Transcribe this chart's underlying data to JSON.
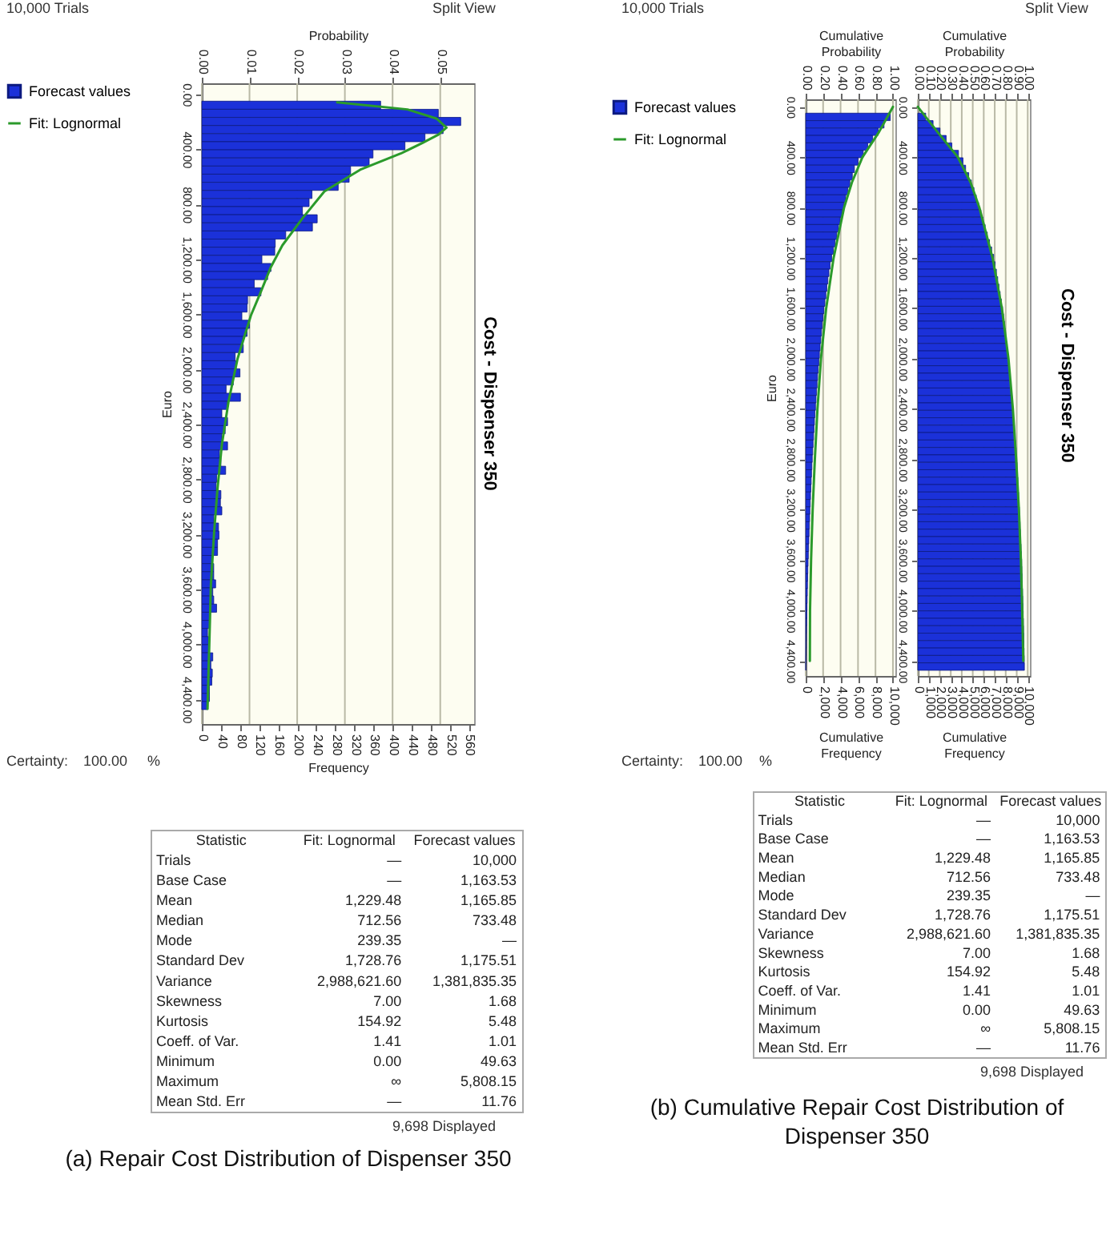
{
  "chart_data": [
    {
      "type": "histogram",
      "orientation": "horizontal",
      "title": "Cost - Dispenser 350",
      "xlabel": "Frequency",
      "ylabel": "Euro",
      "x2label": "Probability",
      "bins": [
        50,
        109,
        168,
        227,
        286,
        345,
        404,
        463,
        522,
        581,
        640,
        699,
        758,
        817,
        876,
        935,
        994,
        1053,
        1112,
        1171,
        1230,
        1289,
        1348,
        1407,
        1466,
        1525,
        1584,
        1643,
        1702,
        1761,
        1820,
        1879,
        1938,
        1997,
        2056,
        2115,
        2174,
        2233,
        2292,
        2351,
        2410,
        2469,
        2528,
        2587,
        2646,
        2705,
        2764,
        2823,
        2882,
        2941,
        3000,
        3059,
        3118,
        3177,
        3236,
        3295,
        3354,
        3413,
        3472,
        3531,
        3590,
        3649,
        3708,
        3767,
        3826,
        3885,
        3944,
        4003,
        4062,
        4121,
        4180,
        4239,
        4298,
        4357,
        4416,
        4475
      ],
      "series": [
        {
          "name": "Fit: Lognormal",
          "type": "line",
          "color": "#2b9a2b",
          "x": [
            59,
            110,
            176,
            243,
            294,
            353,
            431,
            549,
            706,
            902,
            1098,
            1255,
            1451,
            1608,
            1922,
            2235,
            2549,
            2863,
            3176,
            3569,
            3961,
            4470
          ],
          "values": [
            284,
            431,
            492,
            513,
            496,
            463,
            417,
            332,
            257,
            211,
            169,
            145,
            122,
            103,
            75,
            56,
            42,
            33,
            26,
            19,
            16,
            12
          ]
        },
        {
          "name": "Forecast values",
          "type": "histogram",
          "color": "#1b31d9",
          "values": [
            375,
            496,
            543,
            506,
            468,
            426,
            359,
            351,
            312,
            309,
            286,
            231,
            225,
            211,
            242,
            232,
            176,
            154,
            153,
            126,
            145,
            138,
            110,
            124,
            96,
            95,
            84,
            100,
            95,
            86,
            87,
            70,
            72,
            80,
            66,
            51,
            81,
            53,
            42,
            54,
            49,
            42,
            54,
            37,
            40,
            50,
            31,
            30,
            40,
            39,
            42,
            25,
            35,
            36,
            33,
            33,
            22,
            25,
            25,
            29,
            23,
            25,
            31,
            16,
            16,
            12,
            14,
            16,
            23,
            19,
            22,
            21,
            16,
            16,
            12
          ]
        }
      ],
      "xlim": [
        0,
        571
      ],
      "xticks": [
        0,
        40,
        80,
        120,
        160,
        200,
        240,
        280,
        320,
        360,
        400,
        440,
        480,
        520,
        560
      ],
      "x2lim": [
        0,
        0.0571
      ],
      "x2ticks": [
        {
          "value": 0,
          "label": "0.00"
        },
        0.01,
        0.02,
        0.03,
        0.04,
        0.05
      ],
      "ylim": [
        4580,
        -80
      ],
      "yticks": [
        {
          "value": 0,
          "label": "0.00"
        },
        {
          "value": 400,
          "label": "400.00"
        },
        {
          "value": 800,
          "label": "800.00"
        },
        {
          "value": 1200,
          "label": "1,200.00"
        },
        {
          "value": 1600,
          "label": "1,600.00"
        },
        {
          "value": 2000,
          "label": "2,000.00"
        },
        {
          "value": 2400,
          "label": "2,400.00"
        },
        {
          "value": 2800,
          "label": "2,800.00"
        },
        {
          "value": 3200,
          "label": "3,200.00"
        },
        {
          "value": 3600,
          "label": "3,600.00"
        },
        {
          "value": 4000,
          "label": "4,000.00"
        },
        {
          "value": 4400,
          "label": "4,400.00"
        }
      ],
      "grid": "x",
      "legend": "left",
      "marker": "none",
      "line_style": "solid",
      "annotations": [
        "10,000 Trials",
        "Split View",
        "9,698 Displayed",
        "Certainty:",
        "100.00",
        "%",
        "(a) Repair Cost Distribution of Dispenser 350"
      ]
    },
    {
      "type": "other",
      "xlabel": "Statistic",
      "categories": [
        "Trials",
        "Base Case",
        "Mean",
        "Median",
        "Mode",
        "Standard Dev",
        "Variance",
        "Skewness",
        "Kurtosis",
        "Coeff. of Var.",
        "Minimum",
        "Maximum",
        "Mean Std. Err"
      ],
      "series": [
        {
          "name": "Fit: Lognormal",
          "values": [
            null,
            null,
            1229.48,
            712.56,
            239.35,
            1728.76,
            2988621.6,
            7.0,
            154.92,
            1.41,
            0.0,
            null,
            null
          ],
          "value_labels": [
            "—",
            "—",
            "1,229.48",
            "712.56",
            "239.35",
            "1,728.76",
            "2,988,621.60",
            "7.00",
            "154.92",
            "1.41",
            "0.00",
            "∞",
            "—"
          ]
        },
        {
          "name": "Forecast values",
          "values": [
            10000,
            1163.53,
            1165.85,
            733.48,
            null,
            1175.51,
            1381835.35,
            1.68,
            5.48,
            1.01,
            49.63,
            5808.15,
            11.76
          ],
          "value_labels": [
            "10,000",
            "1,163.53",
            "1,165.85",
            "733.48",
            "—",
            "1,175.51",
            "1,381,835.35",
            "1.68",
            "5.48",
            "1.01",
            "49.63",
            "5,808.15",
            "11.76"
          ]
        }
      ]
    },
    {
      "type": "histogram",
      "orientation": "horizontal",
      "xlabel": "Cumulative Frequency",
      "ylabel": "Euro",
      "x2label": "Cumulative Probability",
      "bins": [
        50,
        109,
        168,
        227,
        286,
        345,
        404,
        463,
        522,
        581,
        640,
        699,
        758,
        817,
        876,
        935,
        994,
        1053,
        1112,
        1171,
        1230,
        1289,
        1348,
        1407,
        1466,
        1525,
        1584,
        1643,
        1702,
        1761,
        1820,
        1879,
        1938,
        1997,
        2056,
        2115,
        2174,
        2233,
        2292,
        2351,
        2410,
        2469,
        2528,
        2587,
        2646,
        2705,
        2764,
        2823,
        2882,
        2941,
        3000,
        3059,
        3118,
        3177,
        3236,
        3295,
        3354,
        3413,
        3472,
        3531,
        3590,
        3649,
        3708,
        3767,
        3826,
        3885,
        3944,
        4003,
        4062,
        4121,
        4180,
        4239,
        4298,
        4357,
        4416,
        4475
      ],
      "series": [
        {
          "name": "Fit: Lognormal",
          "type": "line",
          "color": "#2b9a2b",
          "x": [
            0,
            200,
            400,
            600,
            800,
            1200,
            1600,
            2000,
            2400,
            2800,
            3200,
            3600,
            4000,
            4400
          ],
          "values": [
            10000,
            8400,
            6500,
            5300,
            4400,
            3200,
            2350,
            1750,
            1350,
            1050,
            800,
            620,
            500,
            480
          ]
        },
        {
          "name": "Forecast values",
          "type": "histogram",
          "color": "#1b31d9",
          "values": [
            9698,
            8978,
            8308,
            7678,
            7118,
            6598,
            5998,
            5588,
            5348,
            5068,
            4828,
            4588,
            4378,
            4168,
            3958,
            3758,
            3568,
            3378,
            3178,
            2978,
            2798,
            2668,
            2548,
            2428,
            2318,
            2208,
            2098,
            1988,
            1898,
            1818,
            1738,
            1658,
            1578,
            1508,
            1438,
            1368,
            1308,
            1248,
            1188,
            1128,
            1068,
            1008,
            958,
            908,
            858,
            808,
            758,
            713,
            673,
            633,
            593,
            558,
            523,
            488,
            458,
            428,
            398,
            368,
            338,
            308,
            278,
            248,
            228,
            208,
            188,
            168,
            148,
            128,
            108,
            88,
            73,
            58,
            43,
            28,
            13
          ]
        }
      ],
      "xlim": [
        0,
        10280
      ],
      "xticks": [
        0,
        {
          "value": 2000,
          "label": "2,000"
        },
        {
          "value": 4000,
          "label": "4,000"
        },
        {
          "value": 6000,
          "label": "6,000"
        },
        {
          "value": 8000,
          "label": "8,000"
        },
        {
          "value": 10000,
          "label": "10,000"
        }
      ],
      "x2lim": [
        0,
        1.028
      ],
      "x2ticks": [
        {
          "value": 0,
          "label": "0.00"
        },
        {
          "value": 0.2,
          "label": "0.20"
        },
        {
          "value": 0.4,
          "label": "0.40"
        },
        {
          "value": 0.6,
          "label": "0.60"
        },
        {
          "value": 0.8,
          "label": "0.80"
        },
        {
          "value": 1,
          "label": "1.00"
        }
      ],
      "ylim": [
        4520,
        -60
      ],
      "yticks": [
        {
          "value": 0,
          "label": "0.00"
        },
        {
          "value": 400,
          "label": "400.00"
        },
        {
          "value": 800,
          "label": "800.00"
        },
        {
          "value": 1200,
          "label": "1,200.00"
        },
        {
          "value": 1600,
          "label": "1,600.00"
        },
        {
          "value": 2000,
          "label": "2,000.00"
        },
        {
          "value": 2400,
          "label": "2,400.00"
        },
        {
          "value": 2800,
          "label": "2,800.00"
        },
        {
          "value": 3200,
          "label": "3,200.00"
        },
        {
          "value": 3600,
          "label": "3,600.00"
        },
        {
          "value": 4000,
          "label": "4,000.00"
        },
        {
          "value": 4400,
          "label": "4,400.00"
        }
      ],
      "grid": "x",
      "legend": "left",
      "marker": "none",
      "line_style": "solid",
      "annotations": [
        "10,000 Trials",
        "Split View",
        "9,698 Displayed",
        "Certainty:",
        "100.00",
        "%",
        "(b) Cumulative Repair Cost Distribution of Dispenser 350",
        "Cost - Dispenser 350"
      ]
    },
    {
      "type": "histogram",
      "orientation": "horizontal",
      "xlabel": "Cumulative Frequency",
      "x2label": "Cumulative Probability",
      "bins": [
        50,
        109,
        168,
        227,
        286,
        345,
        404,
        463,
        522,
        581,
        640,
        699,
        758,
        817,
        876,
        935,
        994,
        1053,
        1112,
        1171,
        1230,
        1289,
        1348,
        1407,
        1466,
        1525,
        1584,
        1643,
        1702,
        1761,
        1820,
        1879,
        1938,
        1997,
        2056,
        2115,
        2174,
        2233,
        2292,
        2351,
        2410,
        2469,
        2528,
        2587,
        2646,
        2705,
        2764,
        2823,
        2882,
        2941,
        3000,
        3059,
        3118,
        3177,
        3236,
        3295,
        3354,
        3413,
        3472,
        3531,
        3590,
        3649,
        3708,
        3767,
        3826,
        3885,
        3944,
        4003,
        4062,
        4121,
        4180,
        4239,
        4298,
        4357,
        4416,
        4475
      ],
      "series": [
        {
          "type": "line",
          "color": "#2b9a2b",
          "x": [
            0,
            200,
            400,
            600,
            800,
            1200,
            1600,
            2000,
            2400,
            2800,
            3200,
            3600,
            4000,
            4400
          ],
          "values": [
            0,
            1800,
            3650,
            4800,
            5600,
            6800,
            7650,
            8250,
            8650,
            8950,
            9200,
            9380,
            9500,
            9600
          ]
        },
        {
          "type": "histogram",
          "color": "#1b31d9",
          "values": [
            720,
            1390,
            2020,
            2580,
            3100,
            3700,
            4110,
            4350,
            4630,
            4870,
            5110,
            5320,
            5530,
            5740,
            5940,
            6130,
            6320,
            6520,
            6720,
            6900,
            7030,
            7150,
            7270,
            7380,
            7490,
            7600,
            7710,
            7800,
            7880,
            7960,
            8040,
            8120,
            8190,
            8260,
            8330,
            8390,
            8450,
            8510,
            8570,
            8630,
            8690,
            8740,
            8790,
            8840,
            8890,
            8940,
            8985,
            9025,
            9065,
            9105,
            9140,
            9175,
            9210,
            9240,
            9270,
            9300,
            9330,
            9360,
            9390,
            9420,
            9450,
            9470,
            9490,
            9510,
            9530,
            9550,
            9570,
            9590,
            9610,
            9625,
            9640,
            9655,
            9670,
            9685,
            9698
          ]
        }
      ],
      "xlim": [
        0,
        10200
      ],
      "xticks": [
        0,
        {
          "value": 1000,
          "label": "1,000"
        },
        {
          "value": 2000,
          "label": "2,000"
        },
        {
          "value": 3000,
          "label": "3,000"
        },
        {
          "value": 4000,
          "label": "4,000"
        },
        {
          "value": 5000,
          "label": "5,000"
        },
        {
          "value": 6000,
          "label": "6,000"
        },
        {
          "value": 7000,
          "label": "7,000"
        },
        {
          "value": 8000,
          "label": "8,000"
        },
        {
          "value": 9000,
          "label": "9,000"
        },
        {
          "value": 10000,
          "label": "10,000"
        }
      ],
      "x2lim": [
        0,
        1.02
      ],
      "x2ticks": [
        {
          "value": 0,
          "label": "0.00"
        },
        {
          "value": 0.1,
          "label": "0.10"
        },
        {
          "value": 0.2,
          "label": "0.20"
        },
        {
          "value": 0.3,
          "label": "0.30"
        },
        {
          "value": 0.4,
          "label": "0.40"
        },
        {
          "value": 0.5,
          "label": "0.50"
        },
        {
          "value": 0.6,
          "label": "0.60"
        },
        {
          "value": 0.7,
          "label": "0.70"
        },
        {
          "value": 0.8,
          "label": "0.80"
        },
        {
          "value": 0.9,
          "label": "0.90"
        },
        {
          "value": 1,
          "label": "1.00"
        }
      ],
      "ylim": [
        4520,
        -60
      ],
      "yticks": [
        {
          "value": 0,
          "label": "0.00"
        },
        {
          "value": 400,
          "label": "400.00"
        },
        {
          "value": 800,
          "label": "800.00"
        },
        {
          "value": 1200,
          "label": "1,200.00"
        },
        {
          "value": 1600,
          "label": "1,600.00"
        },
        {
          "value": 2000,
          "label": "2,000.00"
        },
        {
          "value": 2400,
          "label": "2,400.00"
        },
        {
          "value": 2800,
          "label": "2,800.00"
        },
        {
          "value": 3200,
          "label": "3,200.00"
        },
        {
          "value": 3600,
          "label": "3,600.00"
        },
        {
          "value": 4000,
          "label": "4,000.00"
        },
        {
          "value": 4400,
          "label": "4,400.00"
        }
      ],
      "grid": "x",
      "marker": "none",
      "line_style": "solid"
    },
    {
      "type": "other",
      "xlabel": "Statistic",
      "categories": [
        "Trials",
        "Base Case",
        "Mean",
        "Median",
        "Mode",
        "Standard Dev",
        "Variance",
        "Skewness",
        "Kurtosis",
        "Coeff. of Var.",
        "Minimum",
        "Maximum",
        "Mean Std. Err"
      ],
      "series": [
        {
          "name": "Fit: Lognormal",
          "values": [
            null,
            null,
            1229.48,
            712.56,
            239.35,
            1728.76,
            2988621.6,
            7.0,
            154.92,
            1.41,
            0.0,
            null,
            null
          ],
          "value_labels": [
            "—",
            "—",
            "1,229.48",
            "712.56",
            "239.35",
            "1,728.76",
            "2,988,621.60",
            "7.00",
            "154.92",
            "1.41",
            "0.00",
            "∞",
            "—"
          ]
        },
        {
          "name": "Forecast values",
          "values": [
            10000,
            1163.53,
            1165.85,
            733.48,
            null,
            1175.51,
            1381835.35,
            1.68,
            5.48,
            1.01,
            49.63,
            5808.15,
            11.76
          ],
          "value_labels": [
            "10,000",
            "1,163.53",
            "1,165.85",
            "733.48",
            "—",
            "1,175.51",
            "1,381,835.35",
            "1.68",
            "5.48",
            "1.01",
            "49.63",
            "5,808.15",
            "11.76"
          ]
        }
      ]
    }
  ]
}
